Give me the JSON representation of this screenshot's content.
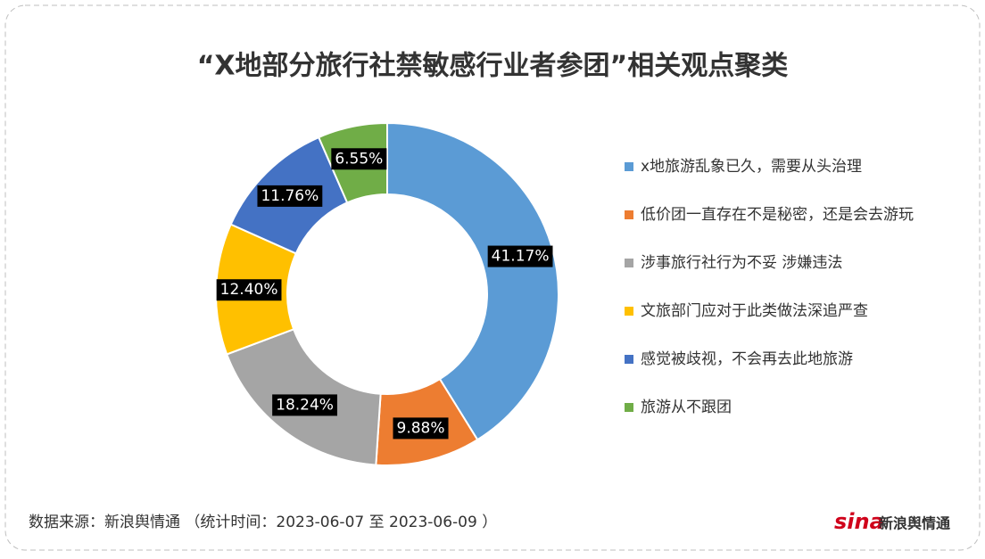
{
  "chart_data": {
    "type": "pie",
    "title": "“X地部分旅行社禁敏感行业者参团”相关观点聚类",
    "categories": [
      "x地旅游乱象已久，需要从头治理",
      "低价团一直存在不是秘密，还是会去游玩",
      "涉事旅行社行为不妥 涉嫌违法",
      "文旅部门应对于此类做法深追严查",
      "感觉被歧视，不会再去此地旅游",
      "旅游从不跟团"
    ],
    "values": [
      41.17,
      9.88,
      18.24,
      12.4,
      11.76,
      6.55
    ],
    "value_labels": [
      "41.17%",
      "9.88%",
      "18.24%",
      "12.40%",
      "11.76%",
      "6.55%"
    ],
    "colors": [
      "#5b9bd5",
      "#ed7d31",
      "#a5a5a5",
      "#ffc000",
      "#4472c4",
      "#70ad47"
    ],
    "legend": "right"
  },
  "footer": {
    "source": "数据来源：新浪舆情通 （统计时间：2023-06-07 至 2023-06-09 ）",
    "logo": "sina",
    "logo_text": "新浪舆情通"
  }
}
